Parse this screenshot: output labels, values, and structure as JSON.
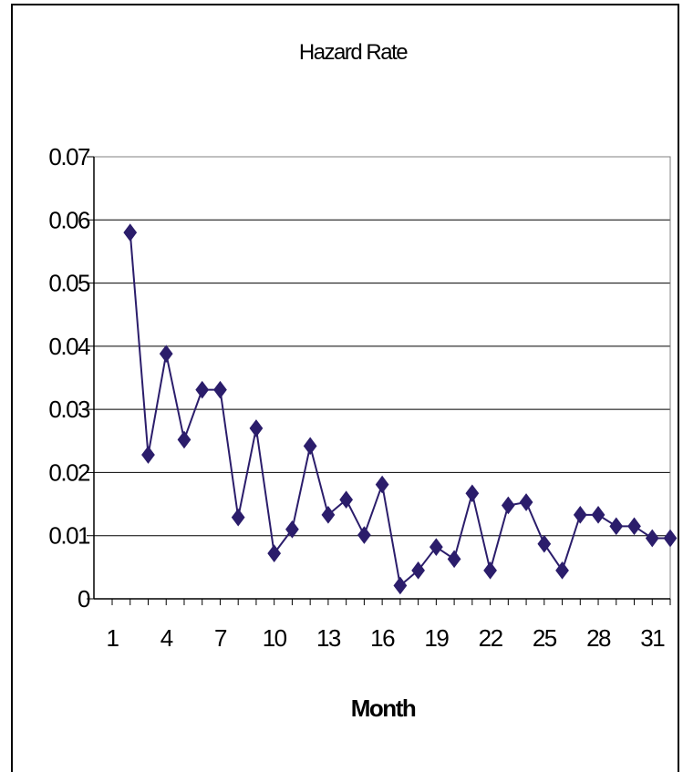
{
  "chart_data": {
    "type": "line",
    "title": "Hazard Rate",
    "xlabel": "Month",
    "ylabel": "",
    "ylim": [
      0,
      0.07
    ],
    "y_ticks": [
      "0",
      "0.01",
      "0.02",
      "0.03",
      "0.04",
      "0.05",
      "0.06",
      "0.07"
    ],
    "x_tick_labels": [
      "1",
      "4",
      "7",
      "10",
      "13",
      "16",
      "19",
      "22",
      "25",
      "28",
      "31"
    ],
    "x_range": [
      1,
      32
    ],
    "grid": "horizontal",
    "marker": "diamond",
    "series_color": "#2B1D6B",
    "gridline_color": "#000000",
    "series": [
      {
        "x": [
          2,
          3,
          4,
          5,
          6,
          7,
          8,
          9,
          10,
          11,
          12,
          13,
          14,
          15,
          16,
          17,
          18,
          19,
          20,
          21,
          22,
          23,
          24,
          25,
          26,
          27,
          28,
          29,
          30,
          31,
          32
        ],
        "values": [
          0.058,
          0.0228,
          0.0388,
          0.0252,
          0.0331,
          0.0331,
          0.0129,
          0.027,
          0.0072,
          0.011,
          0.0242,
          0.0133,
          0.0157,
          0.0101,
          0.0181,
          0.0021,
          0.0045,
          0.0082,
          0.0063,
          0.0167,
          0.0045,
          0.0148,
          0.0153,
          0.0087,
          0.0045,
          0.0133,
          0.0133,
          0.0115,
          0.0115,
          0.0096,
          0.0096
        ]
      }
    ]
  }
}
